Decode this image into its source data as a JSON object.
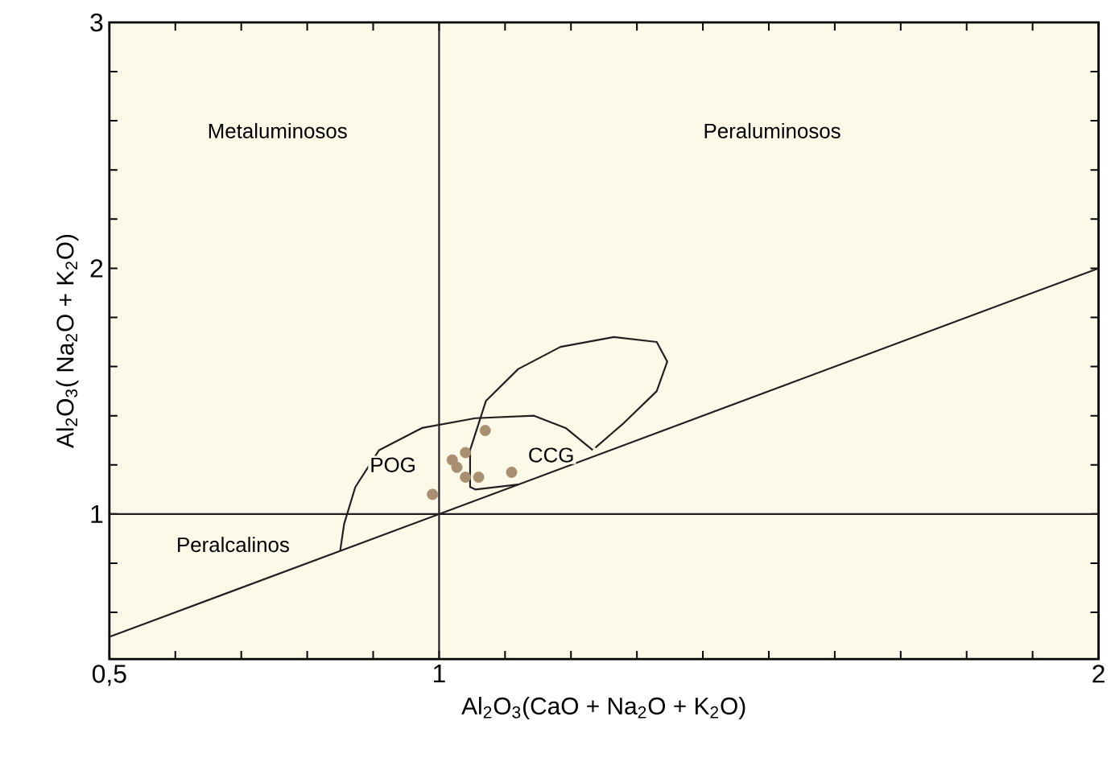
{
  "chart_data": {
    "type": "scatter",
    "xlabel": "Al$_{2}$O$_{3}$(CaO + Na$_{2}$O + K$_{2}$O)",
    "ylabel": "Al$_{2}$O$_{3}$( Na$_{2}$O + K$_{2}$O)",
    "xlim": [
      0.5,
      2
    ],
    "ylim": [
      0.41,
      3
    ],
    "xticks": [
      {
        "value": 0.5,
        "label": "0,5"
      },
      {
        "value": 0.6,
        "label": null
      },
      {
        "value": 0.7,
        "label": null
      },
      {
        "value": 0.8,
        "label": null
      },
      {
        "value": 0.9,
        "label": null
      },
      1,
      {
        "value": 1.1,
        "label": null
      },
      {
        "value": 1.2,
        "label": null
      },
      {
        "value": 1.3,
        "label": null
      },
      {
        "value": 1.4,
        "label": null
      },
      {
        "value": 1.5,
        "label": null
      },
      {
        "value": 1.6,
        "label": null
      },
      {
        "value": 1.7,
        "label": null
      },
      {
        "value": 1.8,
        "label": null
      },
      {
        "value": 1.9,
        "label": null
      },
      2
    ],
    "yticks": [
      {
        "value": 0.6,
        "label": null
      },
      {
        "value": 0.8,
        "label": null
      },
      1,
      {
        "value": 1.2,
        "label": null
      },
      {
        "value": 1.4,
        "label": null
      },
      {
        "value": 1.6,
        "label": null
      },
      {
        "value": 1.8,
        "label": null
      },
      2,
      {
        "value": 2.2,
        "label": null
      },
      {
        "value": 2.4,
        "label": null
      },
      {
        "value": 2.6,
        "label": null
      },
      {
        "value": 2.8,
        "label": null
      },
      3
    ],
    "series": [
      {
        "type": "line",
        "color": "#231f20",
        "x": [
          0.5,
          2
        ],
        "values": [
          0.5,
          2
        ]
      },
      {
        "type": "line",
        "color": "#231f20",
        "x": [
          1,
          1
        ],
        "values": [
          0.41,
          3
        ]
      },
      {
        "type": "line",
        "color": "#231f20",
        "x": [
          0.5,
          2
        ],
        "values": [
          1,
          1
        ]
      },
      {
        "type": "line",
        "color": "#231f20",
        "x": [
          0.85,
          0.856,
          0.873,
          0.909,
          0.974,
          1.055,
          1.144,
          1.192,
          1.233
        ],
        "values": [
          0.85,
          0.96,
          1.11,
          1.26,
          1.35,
          1.39,
          1.4,
          1.35,
          1.26
        ]
      },
      {
        "type": "line",
        "color": "#231f20",
        "x": [
          1.12,
          1.055,
          1.047,
          1.047,
          1.071,
          1.12,
          1.184,
          1.265,
          1.33,
          1.346,
          1.33,
          1.28,
          1.237
        ],
        "values": [
          1.12,
          1.1,
          1.11,
          1.26,
          1.46,
          1.59,
          1.68,
          1.72,
          1.7,
          1.62,
          1.5,
          1.37,
          1.27
        ]
      },
      {
        "color": "#a88f72",
        "marker": "circle",
        "x": [
          1.07,
          1.04,
          1.02,
          1.027,
          1.04,
          1.06,
          1.11,
          0.99
        ],
        "values": [
          1.34,
          1.25,
          1.22,
          1.19,
          1.15,
          1.15,
          1.17,
          1.08
        ]
      }
    ],
    "annotations": [
      "Metaluminosos",
      "Peraluminosos",
      "Peralcalinos",
      {
        "text": "POG",
        "x": 0.93,
        "y": 1.2
      },
      {
        "text": "CCG",
        "x": 1.17,
        "y": 1.24
      }
    ]
  }
}
